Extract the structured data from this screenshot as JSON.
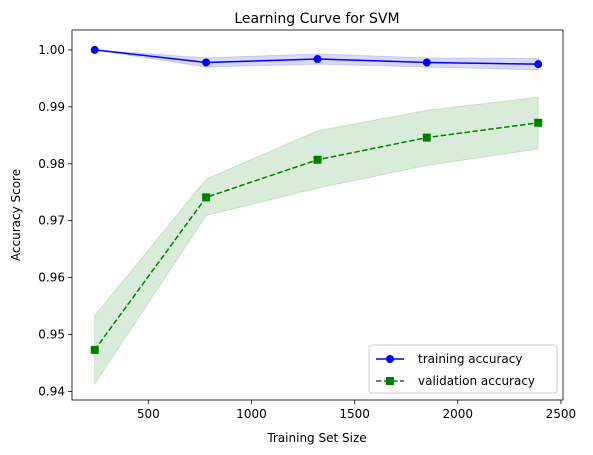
{
  "chart_data": {
    "type": "line",
    "title": "Learning Curve for SVM",
    "xlabel": "Training Set Size",
    "ylabel": "Accuracy Score",
    "xlim": [
      130,
      2510
    ],
    "ylim": [
      0.9385,
      1.0035
    ],
    "xticks": [
      500,
      1000,
      1500,
      2000,
      2500
    ],
    "yticks": [
      0.94,
      0.95,
      0.96,
      0.97,
      0.98,
      0.99,
      1.0
    ],
    "xtick_labels": [
      "500",
      "1000",
      "1500",
      "2000",
      "2500"
    ],
    "ytick_labels": [
      "0.94",
      "0.95",
      "0.96",
      "0.97",
      "0.98",
      "0.99",
      "1.00"
    ],
    "x": [
      240,
      780,
      1320,
      1850,
      2390
    ],
    "grid": false,
    "legend_position": "lower-right",
    "series": [
      {
        "name": "training accuracy",
        "values": [
          1.0,
          0.9978,
          0.9984,
          0.9978,
          0.9975
        ],
        "band_low": [
          1.0,
          0.997,
          0.9975,
          0.997,
          0.9965
        ],
        "band_high": [
          1.0,
          0.9986,
          0.9993,
          0.9986,
          0.9985
        ],
        "color": "#0000ff",
        "band_color": "#0000ff",
        "line_style": "solid",
        "marker": "circle"
      },
      {
        "name": "validation accuracy",
        "values": [
          0.9473,
          0.9741,
          0.9807,
          0.9846,
          0.9872
        ],
        "band_low": [
          0.9413,
          0.9709,
          0.9757,
          0.9797,
          0.9826
        ],
        "band_high": [
          0.9533,
          0.9773,
          0.9858,
          0.9894,
          0.9917
        ],
        "color": "#008000",
        "band_color": "#008000",
        "line_style": "dashed",
        "marker": "square"
      }
    ]
  }
}
